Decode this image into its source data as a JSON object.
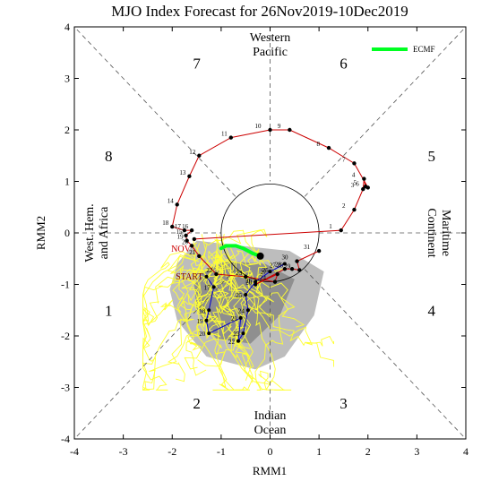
{
  "chart_data": {
    "type": "line",
    "title": "MJO Index Forecast for 26Nov2019-10Dec2019",
    "xlabel": "RMM1",
    "ylabel": "RMM2",
    "xlim": [
      -4,
      4
    ],
    "ylim": [
      -4,
      4
    ],
    "x_ticks": [
      "-4",
      "-3",
      "-2",
      "-1",
      "0",
      "1",
      "2",
      "3",
      "4"
    ],
    "y_ticks": [
      "-4",
      "-3",
      "-2",
      "-1",
      "0",
      "1",
      "2",
      "3",
      "4"
    ],
    "grid": "dashed phase boundaries",
    "legend_position": "top-right",
    "phase_labels": [
      {
        "text": "1",
        "x": -3.3,
        "y": -1.5
      },
      {
        "text": "2",
        "x": -1.5,
        "y": -3.3
      },
      {
        "text": "3",
        "x": 1.5,
        "y": -3.3
      },
      {
        "text": "4",
        "x": 3.3,
        "y": -1.5
      },
      {
        "text": "5",
        "x": 3.3,
        "y": 1.5
      },
      {
        "text": "6",
        "x": 1.5,
        "y": 3.3
      },
      {
        "text": "7",
        "x": -1.5,
        "y": 3.3
      },
      {
        "text": "8",
        "x": -3.3,
        "y": 1.5
      }
    ],
    "region_labels": {
      "top": [
        "Western",
        "Pacific"
      ],
      "bottom": [
        "Indian",
        "Ocean"
      ],
      "left": [
        "West. Hem.",
        "and Africa"
      ],
      "right": [
        "Maritime",
        "Continent"
      ]
    },
    "observed": {
      "color": "#cc0000",
      "points": [
        {
          "label": "NOV",
          "x": -1.55,
          "y": -0.12
        },
        {
          "label": "1",
          "x": 1.45,
          "y": 0.05
        },
        {
          "label": "2",
          "x": 1.72,
          "y": 0.45
        },
        {
          "label": "3",
          "x": 1.9,
          "y": 0.85
        },
        {
          "label": "4",
          "x": 1.92,
          "y": 1.05
        },
        {
          "label": "5",
          "x": 1.95,
          "y": 0.9
        },
        {
          "label": "6",
          "x": 2.0,
          "y": 0.88
        },
        {
          "label": "7",
          "x": 1.72,
          "y": 1.35
        },
        {
          "label": "8",
          "x": 1.2,
          "y": 1.65
        },
        {
          "label": "9",
          "x": 0.4,
          "y": 2.0
        },
        {
          "label": "10",
          "x": 0.0,
          "y": 2.0
        },
        {
          "label": "11",
          "x": -0.8,
          "y": 1.85
        },
        {
          "label": "12",
          "x": -1.45,
          "y": 1.5
        },
        {
          "label": "13",
          "x": -1.65,
          "y": 1.1
        },
        {
          "label": "14",
          "x": -1.9,
          "y": 0.55
        },
        {
          "label": "18",
          "x": -2.0,
          "y": 0.12
        },
        {
          "label": "17",
          "x": -1.75,
          "y": 0.05
        },
        {
          "label": "16",
          "x": -1.6,
          "y": 0.05
        },
        {
          "label": "15",
          "x": -1.72,
          "y": -0.05
        },
        {
          "label": "19",
          "x": -1.7,
          "y": -0.15
        },
        {
          "label": "20",
          "x": -1.6,
          "y": -0.25
        },
        {
          "label": "21",
          "x": -1.45,
          "y": -0.45
        },
        {
          "label": "22",
          "x": -1.1,
          "y": -0.8
        },
        {
          "label": "23",
          "x": -0.5,
          "y": -0.85
        },
        {
          "label": "24",
          "x": 0.1,
          "y": -0.95
        },
        {
          "label": "25",
          "x": 0.15,
          "y": -0.8
        },
        {
          "label": "26",
          "x": -0.3,
          "y": -1.0
        },
        {
          "label": "27",
          "x": 0.3,
          "y": -0.7
        },
        {
          "label": "28",
          "x": 0.45,
          "y": -0.7
        },
        {
          "label": "29",
          "x": 0.6,
          "y": -0.72
        },
        {
          "label": "30",
          "x": 0.55,
          "y": -0.55
        },
        {
          "label": "31",
          "x": 1.0,
          "y": -0.35
        }
      ]
    },
    "ensemble_mean": {
      "color": "#0000cc",
      "points": [
        {
          "label": "START",
          "x": -1.3,
          "y": -0.85
        },
        {
          "label": "17",
          "x": -1.15,
          "y": -1.05
        },
        {
          "label": "18",
          "x": -1.25,
          "y": -1.5
        },
        {
          "label": "19",
          "x": -1.3,
          "y": -1.7
        },
        {
          "label": "20",
          "x": -1.25,
          "y": -1.95
        },
        {
          "label": "21",
          "x": -0.6,
          "y": -1.65
        },
        {
          "label": "22",
          "x": -0.65,
          "y": -2.1
        },
        {
          "label": "23",
          "x": -0.55,
          "y": -1.95
        },
        {
          "label": "24",
          "x": -0.45,
          "y": -1.5
        },
        {
          "label": "25",
          "x": -0.5,
          "y": -1.2
        },
        {
          "label": "26",
          "x": -0.3,
          "y": -0.95
        },
        {
          "label": "27",
          "x": 0.0,
          "y": -0.75
        },
        {
          "label": "28",
          "x": 0.3,
          "y": -0.6
        }
      ]
    },
    "ecmf": {
      "name": "ECMF",
      "color": "#00ff22",
      "points": [
        {
          "x": -1.0,
          "y": -0.3
        },
        {
          "x": -0.9,
          "y": -0.25
        },
        {
          "x": -0.7,
          "y": -0.25
        },
        {
          "x": -0.55,
          "y": -0.3
        },
        {
          "x": -0.35,
          "y": -0.4
        },
        {
          "x": -0.2,
          "y": -0.45
        }
      ]
    },
    "ensemble_members_color": "#ffff33",
    "spread_color": "#999999"
  }
}
